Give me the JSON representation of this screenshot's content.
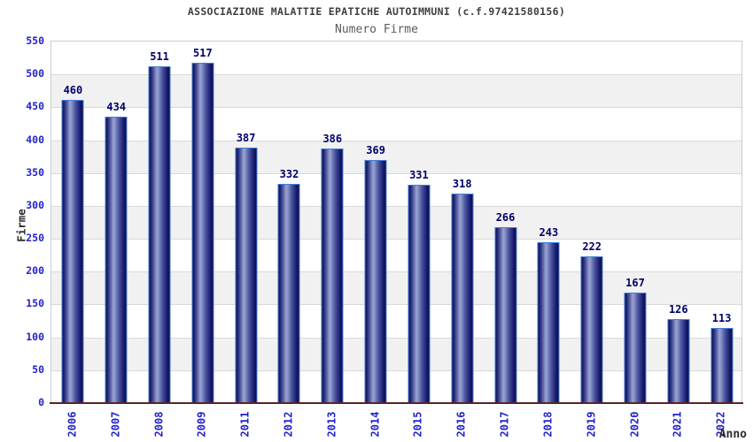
{
  "header": {
    "title": "ASSOCIAZIONE MALATTIE EPATICHE AUTOIMMUNI (c.f.97421580156)",
    "subtitle": "Numero Firme"
  },
  "chart_data": {
    "type": "bar",
    "title": "ASSOCIAZIONE MALATTIE EPATICHE AUTOIMMUNI (c.f.97421580156)",
    "subtitle": "Numero Firme",
    "xlabel": "Anno",
    "ylabel": "Firme",
    "categories": [
      "2006",
      "2007",
      "2008",
      "2009",
      "2011",
      "2012",
      "2013",
      "2014",
      "2015",
      "2016",
      "2017",
      "2018",
      "2019",
      "2020",
      "2021",
      "2022"
    ],
    "values": [
      460,
      434,
      511,
      517,
      387,
      332,
      386,
      369,
      331,
      318,
      266,
      243,
      222,
      167,
      126,
      113
    ],
    "ylim": [
      0,
      550
    ],
    "ytick_step": 50,
    "grid": "horizontal-bands-alternating",
    "legend": "none",
    "bar_labels": "above-bars",
    "x_tick_rotation_deg": -90,
    "colors": {
      "bar_dark": "#0e0e52",
      "bar_highlight": "#9aa3d2",
      "bar_outline": "#3e7ed8",
      "tick_label": "#2323cc",
      "value_label": "#00006b",
      "title_text": "#3f3f3f",
      "subtitle_text": "#5c5c5c",
      "band_gray": "#f1f1f1",
      "grid_line": "#d9d9d9",
      "x_axis_line": "#5a2424",
      "plot_border": "#cccccc",
      "background": "#ffffff"
    }
  }
}
